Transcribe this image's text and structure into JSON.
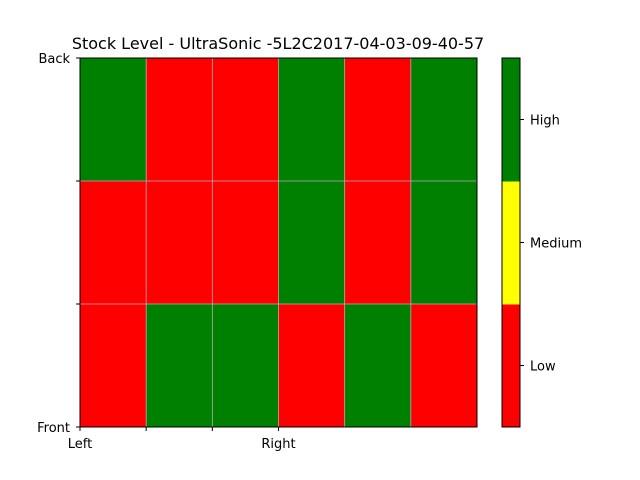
{
  "chart_data": {
    "type": "heatmap",
    "title": "Stock Level - UltraSonic -5L2C2017-04-03-09-40-57",
    "rows": [
      "Back",
      "",
      "",
      "Front"
    ],
    "columns": [
      "Left",
      "",
      "",
      "Right"
    ],
    "grid": true,
    "matrix": [
      [
        "High",
        "Low",
        "Low",
        "High",
        "Low",
        "High"
      ],
      [
        "Low",
        "Low",
        "Low",
        "High",
        "Low",
        "High"
      ],
      [
        "Low",
        "High",
        "High",
        "Low",
        "High",
        "Low"
      ]
    ],
    "colorbar": {
      "position": "right",
      "levels": [
        {
          "label": "Low",
          "color": "#ff0000"
        },
        {
          "label": "Medium",
          "color": "#ffff00"
        },
        {
          "label": "High",
          "color": "#008000"
        }
      ]
    }
  }
}
